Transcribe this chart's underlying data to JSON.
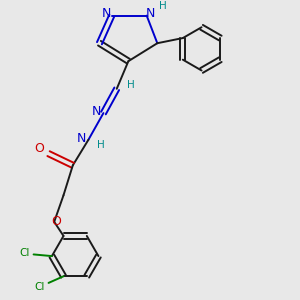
{
  "bg_color": "#e8e8e8",
  "bond_color": "#1a1a1a",
  "n_color": "#0000cd",
  "o_color": "#cc0000",
  "cl_color": "#008000",
  "h_color": "#008b8b",
  "figsize": [
    3.0,
    3.0
  ],
  "dpi": 100,
  "xlim": [
    0,
    9
  ],
  "ylim": [
    0,
    9
  ]
}
